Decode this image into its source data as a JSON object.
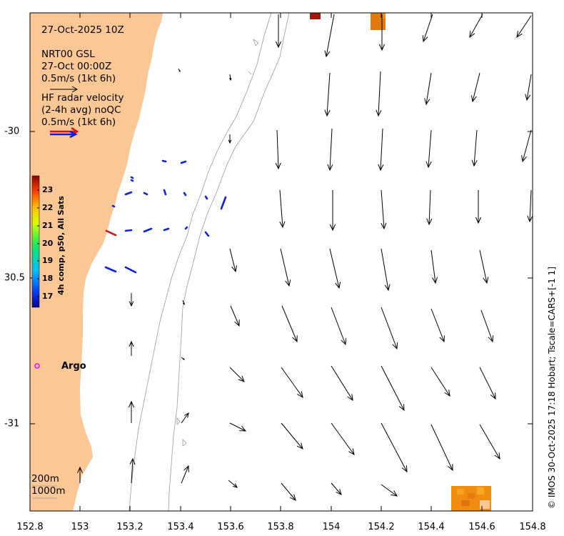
{
  "header": {
    "date_line": "27-Oct-2025 10Z",
    "model_line1": "NRT00 GSL",
    "model_line2": "27-Oct 00:00Z",
    "model_scale": "0.5m/s (1kt 6h)",
    "radar_line1": "HF radar velocity",
    "radar_line2": "(2-4h avg) noQC",
    "radar_scale": "0.5m/s (1kt 6h)"
  },
  "axes": {
    "x_ticks": [
      "152.8",
      "153",
      "153.2",
      "153.4",
      "153.6",
      "153.8",
      "154",
      "154.2",
      "154.4",
      "154.6",
      "154.8"
    ],
    "y_ticks": [
      "-30",
      "30.5",
      "-31"
    ],
    "colors": {
      "land": "#fbc895",
      "frame": "#000000",
      "contour": "#9a9a9a"
    }
  },
  "colorbar": {
    "title": "4h comp, p50, All Sats",
    "ticks": [
      "23",
      "22",
      "21",
      "20",
      "19",
      "18",
      "17"
    ]
  },
  "legend": {
    "depth_200": "200m",
    "depth_1000": "1000m"
  },
  "argo": {
    "label": "Argo",
    "color": "#ff00ff"
  },
  "credit": "© IMOS 30-Oct-2025 17:18 Hobart; Tscale=CARS+[-1 1]"
}
